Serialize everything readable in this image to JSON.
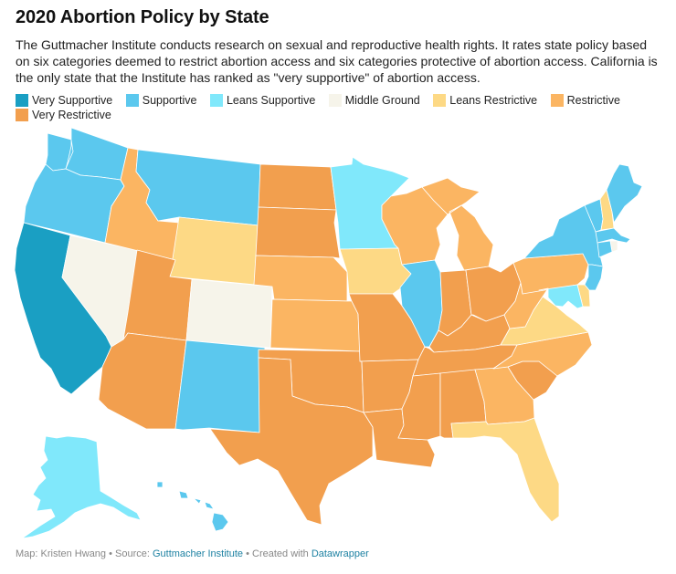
{
  "title": "2020 Abortion Policy by State",
  "description": "The Guttmacher Institute conducts research on sexual and reproductive health rights. It rates state policy based on six categories deemed to restrict abortion access and six categories protective of abortion access. California is the only state that the Institute has ranked as \"very supportive\" of abortion access.",
  "legend": [
    {
      "label": "Very Supportive",
      "color": "#1a9fc3"
    },
    {
      "label": "Supportive",
      "color": "#5bc8ee"
    },
    {
      "label": "Leans Supportive",
      "color": "#80e8fb"
    },
    {
      "label": "Middle Ground",
      "color": "#f6f4ea"
    },
    {
      "label": "Leans Restrictive",
      "color": "#fdd985"
    },
    {
      "label": "Restrictive",
      "color": "#fbb562"
    },
    {
      "label": "Very Restrictive",
      "color": "#f29f4e"
    }
  ],
  "states": {
    "WA": "Supportive",
    "OR": "Supportive",
    "CA": "Very Supportive",
    "NV": "Middle Ground",
    "ID": "Restrictive",
    "MT": "Supportive",
    "WY": "Leans Restrictive",
    "UT": "Very Restrictive",
    "CO": "Middle Ground",
    "AZ": "Very Restrictive",
    "NM": "Supportive",
    "ND": "Very Restrictive",
    "SD": "Very Restrictive",
    "NE": "Restrictive",
    "KS": "Restrictive",
    "OK": "Very Restrictive",
    "TX": "Very Restrictive",
    "MN": "Leans Supportive",
    "IA": "Leans Restrictive",
    "MO": "Very Restrictive",
    "AR": "Very Restrictive",
    "LA": "Very Restrictive",
    "WI": "Restrictive",
    "IL": "Supportive",
    "MI": "Restrictive",
    "IN": "Very Restrictive",
    "OH": "Very Restrictive",
    "KY": "Very Restrictive",
    "TN": "Very Restrictive",
    "MS": "Very Restrictive",
    "AL": "Very Restrictive",
    "GA": "Restrictive",
    "FL": "Leans Restrictive",
    "SC": "Very Restrictive",
    "NC": "Restrictive",
    "VA": "Leans Restrictive",
    "WV": "Restrictive",
    "PA": "Restrictive",
    "NY": "Supportive",
    "VT": "Supportive",
    "NH": "Leans Restrictive",
    "ME": "Supportive",
    "MA": "Supportive",
    "RI": "Middle Ground",
    "CT": "Supportive",
    "NJ": "Supportive",
    "DE": "Leans Restrictive",
    "MD": "Leans Supportive",
    "AK": "Leans Supportive",
    "HI": "Supportive"
  },
  "footer": {
    "map_credit": "Map: Kristen Hwang",
    "separator": " • ",
    "source_prefix": "Source: ",
    "source_link": "Guttmacher Institute",
    "created_prefix": "Created with ",
    "created_link": "Datawrapper"
  }
}
